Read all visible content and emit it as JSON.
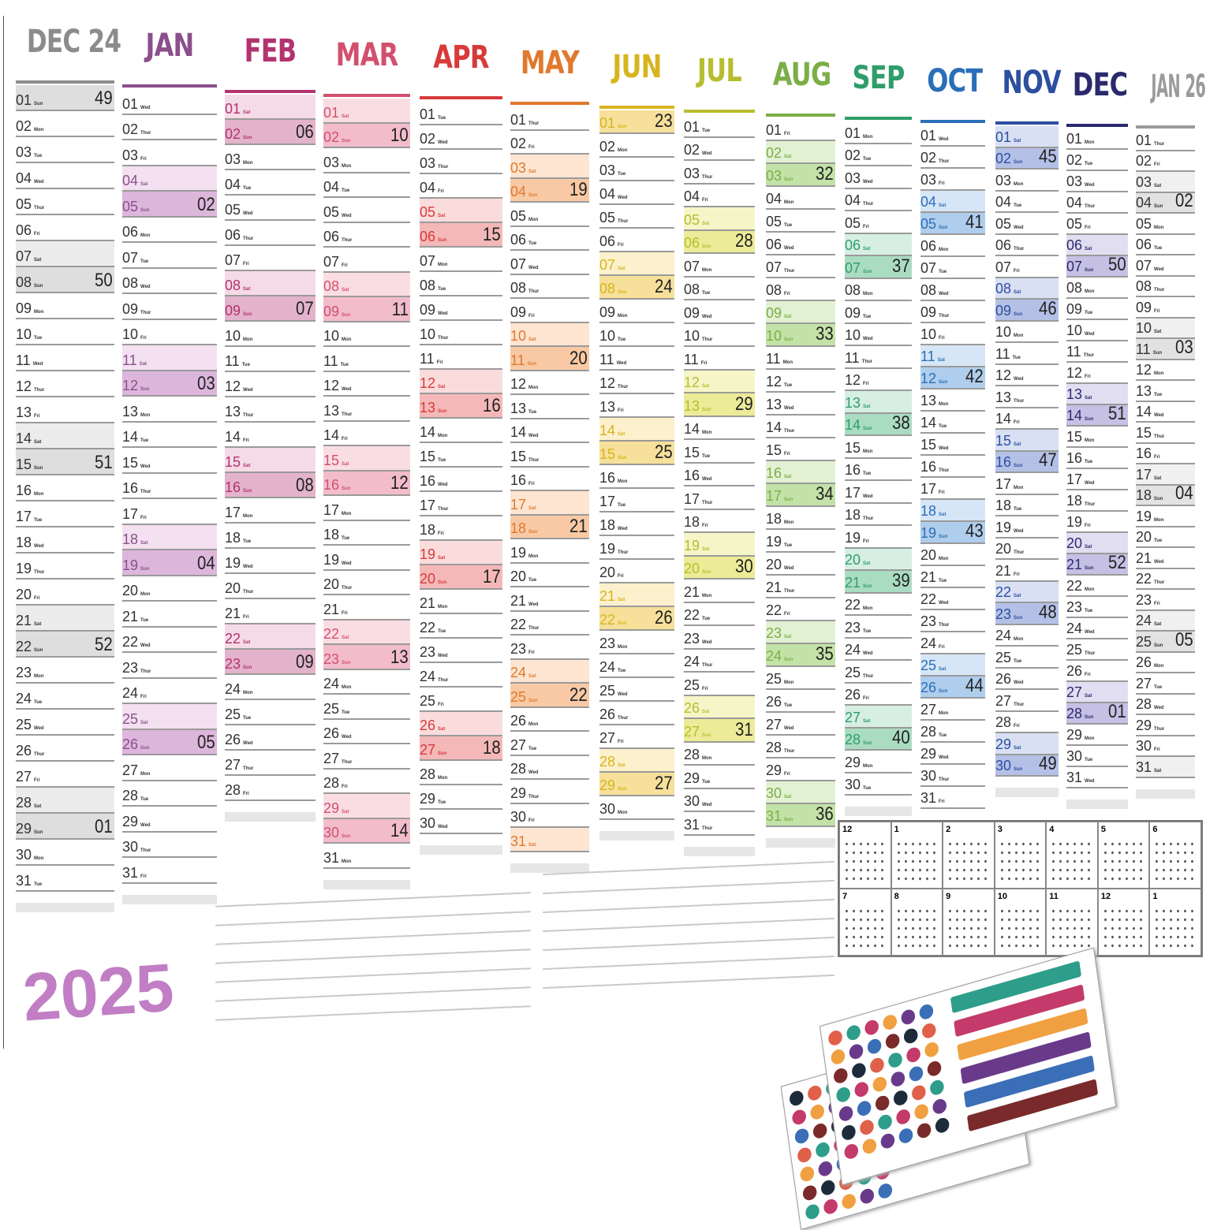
{
  "weekdays": [
    "Mon",
    "Tue",
    "Wed",
    "Thur",
    "Fri",
    "Sat",
    "Sun"
  ],
  "day_numbers": [
    "01",
    "02",
    "03",
    "04",
    "05",
    "06",
    "07",
    "08",
    "09",
    "10",
    "11",
    "12",
    "13",
    "14",
    "15",
    "16",
    "17",
    "18",
    "19",
    "20",
    "21",
    "22",
    "23",
    "24",
    "25",
    "26",
    "27",
    "28",
    "29",
    "30",
    "31"
  ],
  "months": [
    {
      "name": "DEC 24",
      "color": "#8c8c8c",
      "sat": "#ececec",
      "sun": "#dedede",
      "days": 31,
      "first_weekday": "Sun",
      "weeks": {
        "01": "49",
        "08": "50",
        "15": "51",
        "22": "52",
        "29": "01"
      }
    },
    {
      "name": "JAN",
      "color": "#8a4f8c",
      "sat": "#f3e0f1",
      "sun": "#ddb6dc",
      "days": 31,
      "first_weekday": "Wed",
      "weeks": {
        "05": "02",
        "12": "03",
        "19": "04",
        "26": "05"
      }
    },
    {
      "name": "FEB",
      "color": "#b2336f",
      "sat": "#f5dbe7",
      "sun": "#e3b3cb",
      "days": 28,
      "first_weekday": "Sat",
      "weeks": {
        "02": "06",
        "09": "07",
        "16": "08",
        "23": "09"
      }
    },
    {
      "name": "MAR",
      "color": "#d2506d",
      "sat": "#fadde3",
      "sun": "#f2bccb",
      "days": 31,
      "first_weekday": "Sat",
      "weeks": {
        "02": "10",
        "09": "11",
        "16": "12",
        "23": "13",
        "30": "14"
      }
    },
    {
      "name": "APR",
      "color": "#d83a3a",
      "sat": "#fbdcdc",
      "sun": "#f4b8b8",
      "days": 30,
      "first_weekday": "Tue",
      "weeks": {
        "06": "15",
        "13": "16",
        "20": "17",
        "27": "18"
      }
    },
    {
      "name": "MAY",
      "color": "#e0792e",
      "sat": "#fde5d2",
      "sun": "#f8c9a4",
      "days": 31,
      "first_weekday": "Thur",
      "weeks": {
        "04": "19",
        "11": "20",
        "18": "21",
        "25": "22"
      }
    },
    {
      "name": "JUN",
      "color": "#d6b51e",
      "sat": "#fcf1cc",
      "sun": "#f6e09a",
      "days": 30,
      "first_weekday": "Sun",
      "weeks": {
        "01": "23",
        "08": "24",
        "15": "25",
        "22": "26",
        "29": "27"
      }
    },
    {
      "name": "JUL",
      "color": "#b6bd2e",
      "sat": "#f6f5c8",
      "sun": "#eceb98",
      "days": 31,
      "first_weekday": "Tue",
      "weeks": {
        "06": "28",
        "13": "29",
        "20": "30",
        "27": "31"
      }
    },
    {
      "name": "AUG",
      "color": "#7cae48",
      "sat": "#e2f1d3",
      "sun": "#c3e2a8",
      "days": 31,
      "first_weekday": "Fri",
      "weeks": {
        "03": "32",
        "10": "33",
        "17": "34",
        "24": "35",
        "31": "36"
      }
    },
    {
      "name": "SEP",
      "color": "#2e9d6a",
      "sat": "#d6efe2",
      "sun": "#aadcc2",
      "days": 30,
      "first_weekday": "Mon",
      "weeks": {
        "07": "37",
        "14": "38",
        "21": "39",
        "28": "40"
      }
    },
    {
      "name": "OCT",
      "color": "#2a6fb8",
      "sat": "#d7e6f6",
      "sun": "#afcdec",
      "days": 31,
      "first_weekday": "Wed",
      "weeks": {
        "05": "41",
        "12": "42",
        "19": "43",
        "26": "44"
      }
    },
    {
      "name": "NOV",
      "color": "#2c4fa0",
      "sat": "#d9e0f3",
      "sun": "#b4c0e6",
      "days": 30,
      "first_weekday": "Sat",
      "weeks": {
        "02": "45",
        "09": "46",
        "16": "47",
        "23": "48",
        "30": "49"
      }
    },
    {
      "name": "DEC",
      "color": "#2a2a6e",
      "sat": "#e2def2",
      "sun": "#c6c0e4",
      "days": 31,
      "first_weekday": "Mon",
      "weeks": {
        "07": "50",
        "14": "51",
        "21": "52",
        "28": "01"
      }
    },
    {
      "name": "JAN 26",
      "color": "#9a9a9a",
      "sat": "#f0f0f0",
      "sun": "#e2e2e2",
      "days": 31,
      "first_weekday": "Thur",
      "weeks": {
        "04": "02",
        "11": "03",
        "18": "04",
        "25": "05"
      }
    }
  ],
  "year": "2025",
  "year_color": "#c17ec5",
  "mini_calendars": [
    "12",
    "1",
    "2",
    "3",
    "4",
    "5",
    "6",
    "7",
    "8",
    "9",
    "10",
    "11",
    "12",
    "1"
  ]
}
